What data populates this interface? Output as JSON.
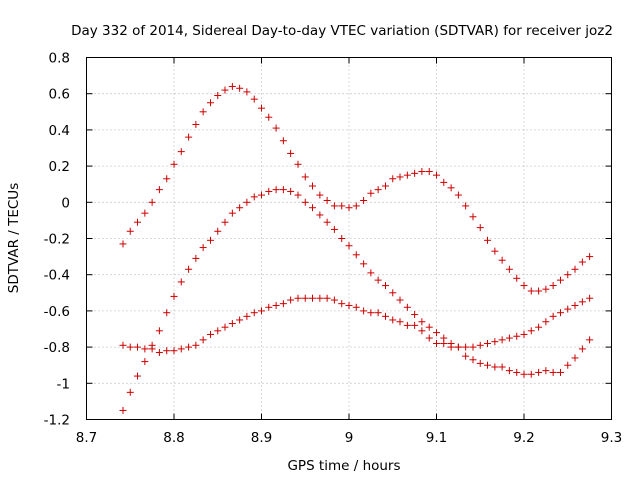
{
  "chart_data": {
    "type": "scatter",
    "title": "Day 332 of 2014, Sidereal Day-to-day VTEC variation (SDTVAR) for receiver joz2",
    "xlabel": "GPS time / hours",
    "ylabel": "SDTVAR / TECUs",
    "xlim": [
      8.7,
      9.3
    ],
    "ylim": [
      -1.2,
      0.8
    ],
    "xticks": [
      8.7,
      8.8,
      8.9,
      9.0,
      9.1,
      9.2,
      9.3
    ],
    "xtick_labels": [
      "8.7",
      "8.8",
      "8.9",
      "9",
      "9.1",
      "9.2",
      "9.3"
    ],
    "yticks": [
      -1.2,
      -1.0,
      -0.8,
      -0.6,
      -0.4,
      -0.2,
      0,
      0.2,
      0.4,
      0.6,
      0.8
    ],
    "ytick_labels": [
      "-1.2",
      "-1",
      "-0.8",
      "-0.6",
      "-0.4",
      "-0.2",
      "0",
      "0.2",
      "0.4",
      "0.6",
      "0.8"
    ],
    "grid": true,
    "legend": false,
    "marker_color": "#cc0000",
    "series": [
      {
        "name": "series-1",
        "x": [
          8.7417,
          8.75,
          8.7583,
          8.7667,
          8.775,
          8.7833,
          8.7917,
          8.8,
          8.8083,
          8.8167,
          8.825,
          8.8333,
          8.8417,
          8.85,
          8.8583,
          8.8667,
          8.875,
          8.8833,
          8.8917,
          8.9,
          8.9083,
          8.9167,
          8.925,
          8.9333,
          8.9417,
          8.95,
          8.9583,
          8.9667,
          8.975,
          8.9833,
          8.9917,
          9.0,
          9.0083,
          9.0167,
          9.025,
          9.0333,
          9.0417,
          9.05,
          9.0583,
          9.0667,
          9.075,
          9.0833,
          9.0917,
          9.1,
          9.1083,
          9.1167,
          9.125,
          9.1333,
          9.1417,
          9.15,
          9.1583,
          9.1667,
          9.175,
          9.1833,
          9.1917,
          9.2,
          9.2083,
          9.2167,
          9.225,
          9.2333,
          9.2417,
          9.25,
          9.2583,
          9.2667,
          9.275
        ],
        "y": [
          -0.23,
          -0.16,
          -0.11,
          -0.06,
          0.0,
          0.07,
          0.13,
          0.21,
          0.28,
          0.36,
          0.43,
          0.5,
          0.55,
          0.59,
          0.62,
          0.64,
          0.63,
          0.61,
          0.57,
          0.52,
          0.47,
          0.41,
          0.34,
          0.27,
          0.21,
          0.14,
          0.09,
          0.04,
          0.01,
          -0.02,
          -0.02,
          -0.03,
          -0.02,
          0.01,
          0.05,
          0.07,
          0.09,
          0.13,
          0.14,
          0.15,
          0.16,
          0.17,
          0.17,
          0.15,
          0.11,
          0.08,
          0.04,
          -0.02,
          -0.08,
          -0.14,
          -0.21,
          -0.27,
          -0.32,
          -0.37,
          -0.42,
          -0.46,
          -0.49,
          -0.49,
          -0.48,
          -0.46,
          -0.43,
          -0.4,
          -0.37,
          -0.33,
          -0.3
        ]
      },
      {
        "name": "series-2",
        "x": [
          8.7417,
          8.75,
          8.7583,
          8.7667,
          8.775,
          8.7833,
          8.7917,
          8.8,
          8.8083,
          8.8167,
          8.825,
          8.8333,
          8.8417,
          8.85,
          8.8583,
          8.8667,
          8.875,
          8.8833,
          8.8917,
          8.9,
          8.9083,
          8.9167,
          8.925,
          8.9333,
          8.9417,
          8.95,
          8.9583,
          8.9667,
          8.975,
          8.9833,
          8.9917,
          9.0,
          9.0083,
          9.0167,
          9.025,
          9.0333,
          9.0417,
          9.05,
          9.0583,
          9.0667,
          9.075,
          9.0833,
          9.0917,
          9.1,
          9.1083,
          9.1167,
          9.125,
          9.1333,
          9.1417,
          9.15,
          9.1583,
          9.1667,
          9.175,
          9.1833,
          9.1917,
          9.2,
          9.2083,
          9.2167,
          9.225,
          9.2333,
          9.2417,
          9.25,
          9.2583,
          9.2667,
          9.275
        ],
        "y": [
          -1.15,
          -1.05,
          -0.96,
          -0.88,
          -0.81,
          -0.71,
          -0.61,
          -0.52,
          -0.44,
          -0.37,
          -0.31,
          -0.25,
          -0.21,
          -0.16,
          -0.11,
          -0.06,
          -0.03,
          0.0,
          0.03,
          0.04,
          0.06,
          0.07,
          0.07,
          0.06,
          0.04,
          0.0,
          -0.03,
          -0.07,
          -0.11,
          -0.15,
          -0.2,
          -0.24,
          -0.29,
          -0.34,
          -0.39,
          -0.43,
          -0.46,
          -0.5,
          -0.54,
          -0.58,
          -0.62,
          -0.66,
          -0.69,
          -0.72,
          -0.75,
          -0.78,
          -0.8,
          -0.85,
          -0.87,
          -0.89,
          -0.9,
          -0.91,
          -0.91,
          -0.93,
          -0.94,
          -0.95,
          -0.95,
          -0.94,
          -0.93,
          -0.94,
          -0.94,
          -0.9,
          -0.86,
          -0.81,
          -0.76
        ]
      },
      {
        "name": "series-3",
        "x": [
          8.7417,
          8.75,
          8.7583,
          8.7667,
          8.775,
          8.7833,
          8.7917,
          8.8,
          8.8083,
          8.8167,
          8.825,
          8.8333,
          8.8417,
          8.85,
          8.8583,
          8.8667,
          8.875,
          8.8833,
          8.8917,
          8.9,
          8.9083,
          8.9167,
          8.925,
          8.9333,
          8.9417,
          8.95,
          8.9583,
          8.9667,
          8.975,
          8.9833,
          8.9917,
          9.0,
          9.0083,
          9.0167,
          9.025,
          9.0333,
          9.0417,
          9.05,
          9.0583,
          9.0667,
          9.075,
          9.0833,
          9.0917,
          9.1,
          9.1083,
          9.1167,
          9.125,
          9.1333,
          9.1417,
          9.15,
          9.1583,
          9.1667,
          9.175,
          9.1833,
          9.1917,
          9.2,
          9.2083,
          9.2167,
          9.225,
          9.2333,
          9.2417,
          9.25,
          9.2583,
          9.2667,
          9.275
        ],
        "y": [
          -0.79,
          -0.8,
          -0.8,
          -0.81,
          -0.79,
          -0.83,
          -0.82,
          -0.82,
          -0.81,
          -0.8,
          -0.79,
          -0.76,
          -0.73,
          -0.71,
          -0.69,
          -0.67,
          -0.65,
          -0.63,
          -0.61,
          -0.6,
          -0.58,
          -0.57,
          -0.56,
          -0.54,
          -0.53,
          -0.53,
          -0.53,
          -0.53,
          -0.53,
          -0.54,
          -0.56,
          -0.57,
          -0.58,
          -0.6,
          -0.61,
          -0.61,
          -0.63,
          -0.65,
          -0.66,
          -0.68,
          -0.68,
          -0.71,
          -0.75,
          -0.78,
          -0.78,
          -0.8,
          -0.8,
          -0.8,
          -0.8,
          -0.79,
          -0.78,
          -0.77,
          -0.76,
          -0.75,
          -0.74,
          -0.73,
          -0.71,
          -0.69,
          -0.66,
          -0.63,
          -0.61,
          -0.59,
          -0.57,
          -0.55,
          -0.53
        ]
      }
    ]
  }
}
